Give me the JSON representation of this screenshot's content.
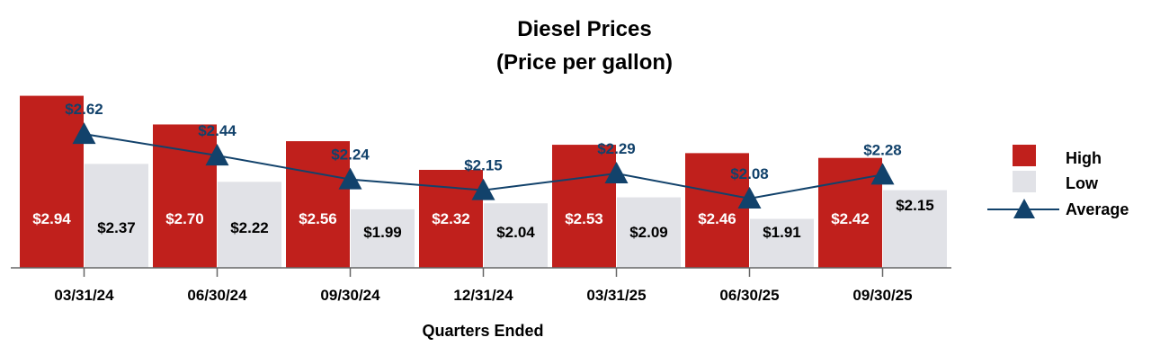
{
  "chart_data": {
    "type": "bar",
    "title": "Diesel Prices",
    "subtitle": "(Price per gallon)",
    "xlabel": "Quarters Ended",
    "ylabel": "",
    "categories": [
      "03/31/24",
      "06/30/24",
      "09/30/24",
      "12/31/24",
      "03/31/25",
      "06/30/25",
      "09/30/25"
    ],
    "series": [
      {
        "name": "High",
        "type": "bar",
        "color": "#C0201C",
        "values": [
          2.94,
          2.7,
          2.56,
          2.32,
          2.53,
          2.46,
          2.42
        ],
        "labels": [
          "$2.94",
          "$2.70",
          "$2.56",
          "$2.32",
          "$2.53",
          "$2.46",
          "$2.42"
        ]
      },
      {
        "name": "Low",
        "type": "bar",
        "color": "#E1E2E7",
        "values": [
          2.37,
          2.22,
          1.99,
          2.04,
          2.09,
          1.91,
          2.15
        ],
        "labels": [
          "$2.37",
          "$2.22",
          "$1.99",
          "$2.04",
          "$2.09",
          "$1.91",
          "$2.15"
        ]
      },
      {
        "name": "Average",
        "type": "line",
        "marker": "triangle",
        "color": "#12426B",
        "values": [
          2.62,
          2.44,
          2.24,
          2.15,
          2.29,
          2.08,
          2.28
        ],
        "labels": [
          "$2.62",
          "$2.44",
          "$2.24",
          "$2.15",
          "$2.29",
          "$2.08",
          "$2.28"
        ]
      }
    ],
    "legend_position": "right",
    "grid": false
  }
}
